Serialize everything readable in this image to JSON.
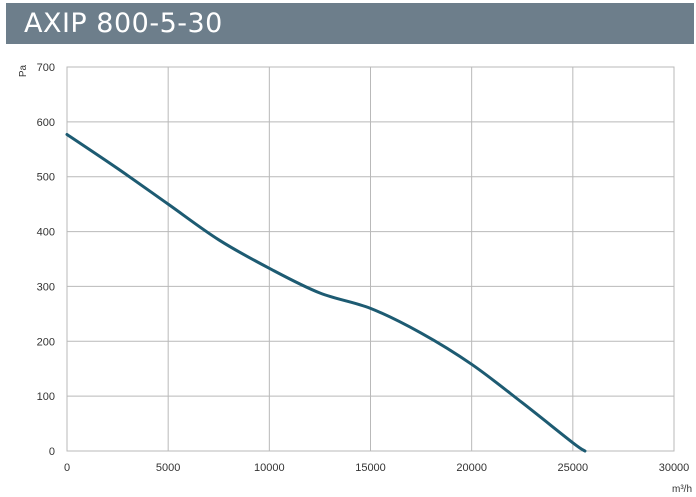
{
  "title": "AXIP 800-5-30",
  "colors": {
    "title_bar_bg": "#6d7e8b",
    "title_text": "#ffffff",
    "curve": "#1d5b72",
    "grid": "#b9b9b9"
  },
  "chart_data": {
    "type": "line",
    "title": "AXIP 800-5-30",
    "xlabel": "m³/h",
    "ylabel": "Pa",
    "xlim": [
      0,
      30000
    ],
    "ylim": [
      0,
      700
    ],
    "x_ticks": [
      0,
      5000,
      10000,
      15000,
      20000,
      25000,
      30000
    ],
    "y_ticks": [
      0,
      100,
      200,
      300,
      400,
      500,
      600,
      700
    ],
    "grid": true,
    "series": [
      {
        "x": [
          0,
          2500,
          5000,
          7500,
          10000,
          12500,
          15000,
          17500,
          20000,
          22500,
          25000,
          25600
        ],
        "y": [
          577,
          515,
          450,
          385,
          333,
          288,
          260,
          215,
          158,
          88,
          15,
          0
        ]
      }
    ]
  }
}
